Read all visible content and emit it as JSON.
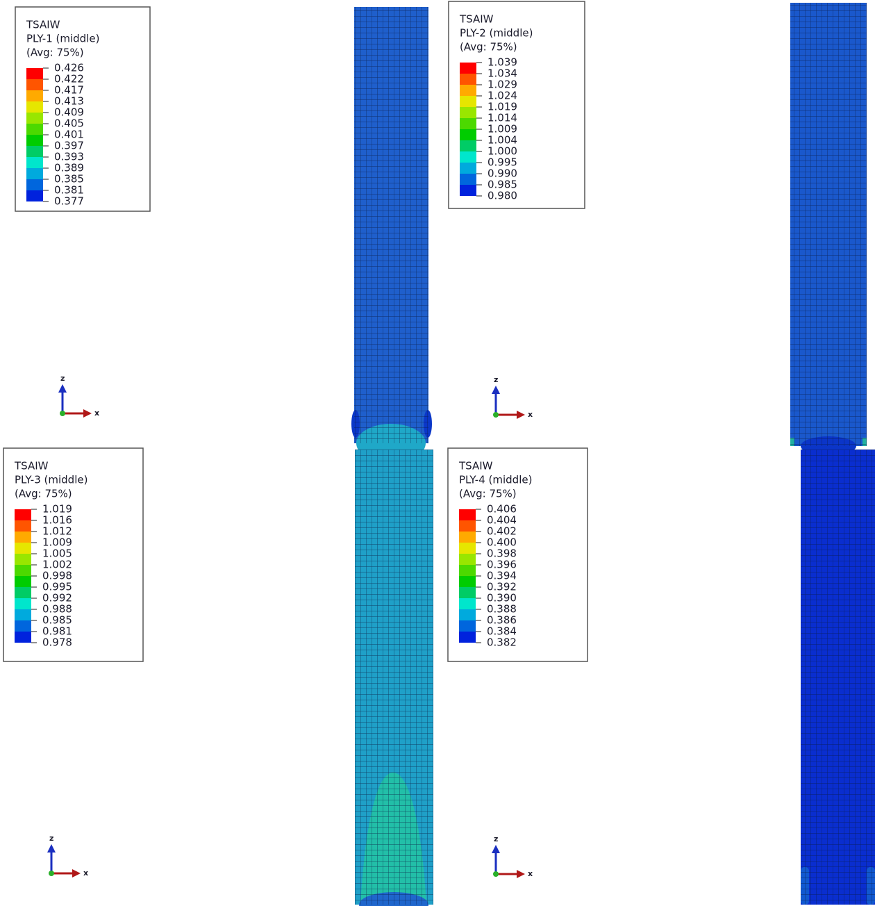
{
  "legend_colors": [
    "#ff0000",
    "#ff5500",
    "#ffaa00",
    "#e6e600",
    "#99e600",
    "#4cd900",
    "#00cc00",
    "#00cc66",
    "#00e6cc",
    "#00aadd",
    "#0066dd",
    "#0022dd"
  ],
  "panels": [
    {
      "title": "TSAIW",
      "ply": "PLY-1 (middle)",
      "avg": "(Avg: 75%)",
      "labels": [
        "0.426",
        "0.422",
        "0.417",
        "0.413",
        "0.409",
        "0.405",
        "0.401",
        "0.397",
        "0.393",
        "0.389",
        "0.385",
        "0.381",
        "0.377"
      ],
      "axes": [
        "z",
        "x"
      ]
    },
    {
      "title": "TSAIW",
      "ply": "PLY-2 (middle)",
      "avg": "(Avg: 75%)",
      "labels": [
        "1.039",
        "1.034",
        "1.029",
        "1.024",
        "1.019",
        "1.014",
        "1.009",
        "1.004",
        "1.000",
        "0.995",
        "0.990",
        "0.985",
        "0.980"
      ],
      "axes": [
        "z",
        "x"
      ]
    },
    {
      "title": "TSAIW",
      "ply": "PLY-3 (middle)",
      "avg": "(Avg: 75%)",
      "labels": [
        "1.019",
        "1.016",
        "1.012",
        "1.009",
        "1.005",
        "1.002",
        "0.998",
        "0.995",
        "0.992",
        "0.988",
        "0.985",
        "0.981",
        "0.978"
      ],
      "axes": [
        "z",
        "x"
      ]
    },
    {
      "title": "TSAIW",
      "ply": "PLY-4 (middle)",
      "avg": "(Avg: 75%)",
      "labels": [
        "0.406",
        "0.404",
        "0.402",
        "0.400",
        "0.398",
        "0.396",
        "0.394",
        "0.392",
        "0.390",
        "0.388",
        "0.386",
        "0.384",
        "0.382"
      ],
      "axes": [
        "z",
        "x"
      ]
    }
  ]
}
